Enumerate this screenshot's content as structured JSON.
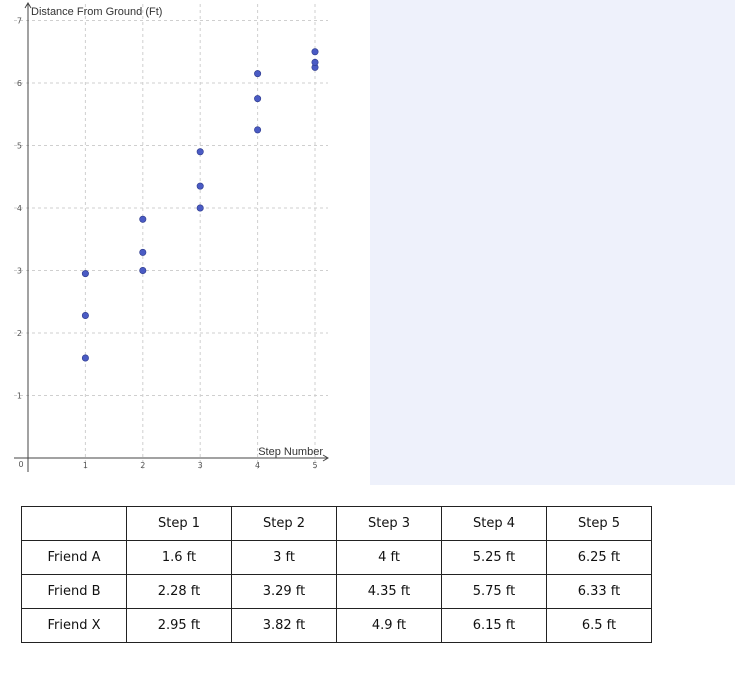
{
  "chart_data": {
    "type": "scatter",
    "xlabel": "Step Number",
    "ylabel": "Distance From Ground (Ft)",
    "xlim": [
      0,
      5.2
    ],
    "ylim": [
      0,
      7
    ],
    "x_ticks": [
      1,
      2,
      3,
      4,
      5
    ],
    "y_ticks": [
      1,
      2,
      3,
      4,
      5,
      6,
      7
    ],
    "origin_label": "0",
    "grid": true,
    "point_color": "#4a5bc4",
    "series": [
      {
        "x": [
          1,
          2,
          3,
          4,
          5
        ],
        "y": [
          1.6,
          3,
          4,
          5.25,
          6.25
        ]
      },
      {
        "x": [
          1,
          2,
          3,
          4,
          5
        ],
        "y": [
          2.28,
          3.29,
          4.35,
          5.75,
          6.33
        ]
      },
      {
        "x": [
          1,
          2,
          3,
          4,
          5
        ],
        "y": [
          2.95,
          3.82,
          4.9,
          6.15,
          6.5
        ]
      }
    ]
  },
  "table": {
    "columns": [
      "",
      "Step 1",
      "Step 2",
      "Step 3",
      "Step 4",
      "Step 5"
    ],
    "rows": [
      {
        "label": "Friend A",
        "values": [
          "1.6 ft",
          "3 ft",
          "4 ft",
          "5.25 ft",
          "6.25 ft"
        ]
      },
      {
        "label": "Friend B",
        "values": [
          "2.28 ft",
          "3.29 ft",
          "4.35 ft",
          "5.75 ft",
          "6.33 ft"
        ]
      },
      {
        "label": "Friend X",
        "values": [
          "2.95 ft",
          "3.82 ft",
          "4.9 ft",
          "6.15 ft",
          "6.5 ft"
        ]
      }
    ]
  }
}
